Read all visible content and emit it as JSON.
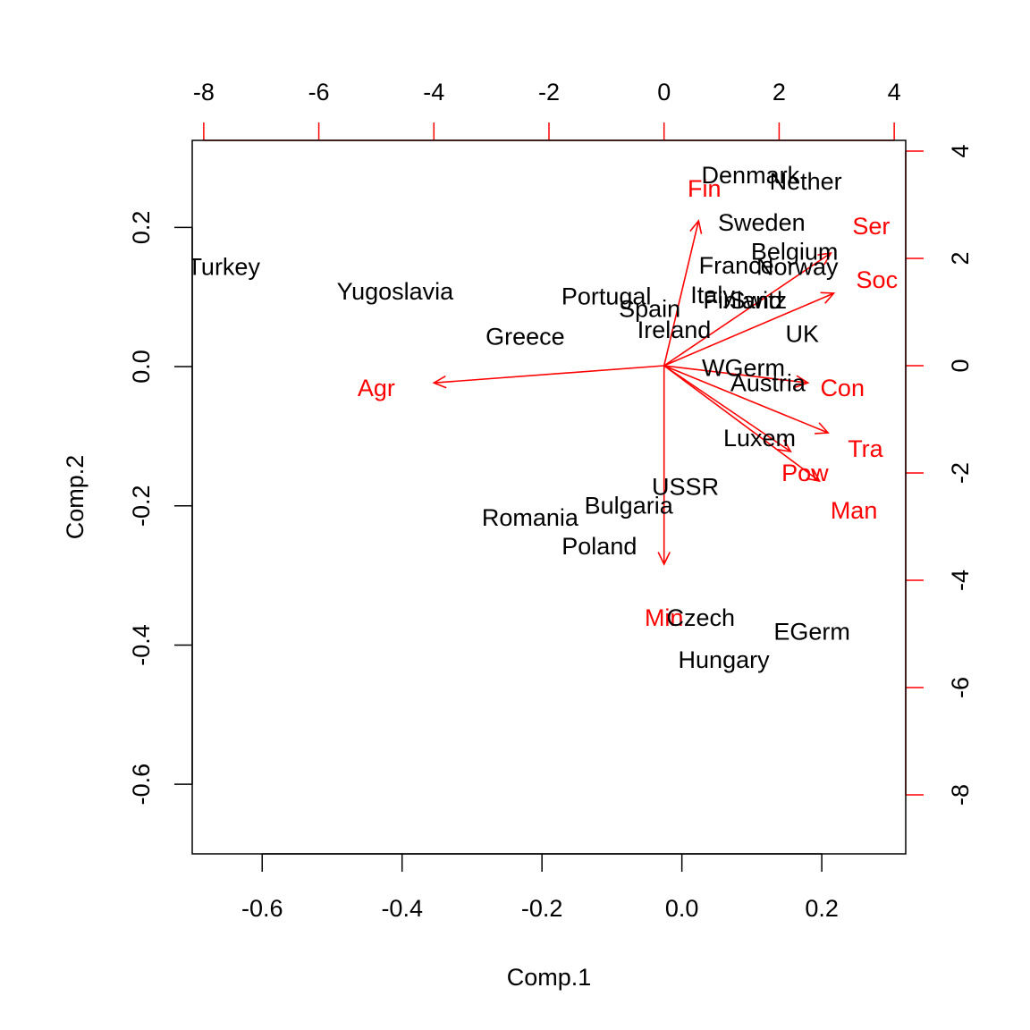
{
  "chart_data": {
    "type": "scatter",
    "title": "",
    "xlabel": "Comp.1",
    "ylabel": "Comp.2",
    "xlim": [
      -0.7,
      0.32
    ],
    "ylim": [
      -0.7,
      0.325
    ],
    "x_ticks": [
      -0.6,
      -0.4,
      -0.2,
      0.0,
      0.2
    ],
    "x_tick_labels": [
      "-0.6",
      "-0.4",
      "-0.2",
      "0.0",
      "0.2"
    ],
    "y_ticks": [
      -0.6,
      -0.4,
      -0.2,
      0.0,
      0.2
    ],
    "y_tick_labels": [
      "-0.6",
      "-0.4",
      "-0.2",
      "0.0",
      "0.2"
    ],
    "top_axis": {
      "lim": [
        -8.2,
        4.2
      ],
      "ticks": [
        -8,
        -6,
        -4,
        -2,
        0,
        2,
        4
      ],
      "tick_labels": [
        "-8",
        "-6",
        "-4",
        "-2",
        "0",
        "2",
        "4"
      ]
    },
    "right_axis": {
      "lim": [
        -9.1,
        4.2
      ],
      "ticks": [
        -8,
        -6,
        -4,
        -2,
        0,
        2,
        4
      ],
      "tick_labels": [
        "-8",
        "-6",
        "-4",
        "-2",
        "0",
        "2",
        "4"
      ]
    },
    "grid": false,
    "colors": {
      "points": "#000000",
      "loadings": "#ff0000",
      "frame": "#000000"
    },
    "observations": [
      {
        "label": "Turkey",
        "x": -0.655,
        "y": 0.143
      },
      {
        "label": "Yugoslavia",
        "x": -0.41,
        "y": 0.108
      },
      {
        "label": "Portugal",
        "x": -0.108,
        "y": 0.101
      },
      {
        "label": "Spain",
        "x": -0.046,
        "y": 0.083
      },
      {
        "label": "Greece",
        "x": -0.224,
        "y": 0.043
      },
      {
        "label": "Ireland",
        "x": -0.011,
        "y": 0.053
      },
      {
        "label": "Denmark",
        "x": 0.098,
        "y": 0.275
      },
      {
        "label": "Nether",
        "x": 0.177,
        "y": 0.266
      },
      {
        "label": "Sweden",
        "x": 0.114,
        "y": 0.207
      },
      {
        "label": "Belgium",
        "x": 0.161,
        "y": 0.165
      },
      {
        "label": "France",
        "x": 0.078,
        "y": 0.145
      },
      {
        "label": "Norway",
        "x": 0.165,
        "y": 0.143
      },
      {
        "label": "Italy",
        "x": 0.044,
        "y": 0.103
      },
      {
        "label": "Finland",
        "x": 0.087,
        "y": 0.095
      },
      {
        "label": "Switz",
        "x": 0.109,
        "y": 0.095
      },
      {
        "label": "UK",
        "x": 0.172,
        "y": 0.047
      },
      {
        "label": "WGerm",
        "x": 0.088,
        "y": -0.002
      },
      {
        "label": "Austria",
        "x": 0.123,
        "y": -0.024
      },
      {
        "label": "Luxem",
        "x": 0.111,
        "y": -0.103
      },
      {
        "label": "USSR",
        "x": 0.005,
        "y": -0.173
      },
      {
        "label": "Bulgaria",
        "x": -0.076,
        "y": -0.2
      },
      {
        "label": "Romania",
        "x": -0.217,
        "y": -0.217
      },
      {
        "label": "Poland",
        "x": -0.118,
        "y": -0.258
      },
      {
        "label": "Czech",
        "x": 0.027,
        "y": -0.361
      },
      {
        "label": "EGerm",
        "x": 0.186,
        "y": -0.381
      },
      {
        "label": "Hungary",
        "x": 0.06,
        "y": -0.421
      }
    ],
    "loadings": [
      {
        "label": "Agr",
        "x": -4.0,
        "y": -0.32,
        "label_x": -5.0,
        "label_y": -0.42
      },
      {
        "label": "Min",
        "x": 0.0,
        "y": -3.7,
        "label_x": 0.0,
        "label_y": -4.7
      },
      {
        "label": "Man",
        "x": 2.7,
        "y": -2.15,
        "label_x": 3.3,
        "label_y": -2.7
      },
      {
        "label": "Pow",
        "x": 2.2,
        "y": -1.6,
        "label_x": 2.45,
        "label_y": -2.0
      },
      {
        "label": "Con",
        "x": 2.5,
        "y": -0.32,
        "label_x": 3.1,
        "label_y": -0.42
      },
      {
        "label": "Ser",
        "x": 2.9,
        "y": 2.1,
        "label_x": 3.6,
        "label_y": 2.6
      },
      {
        "label": "Fin",
        "x": 0.6,
        "y": 2.7,
        "label_x": 0.7,
        "label_y": 3.3
      },
      {
        "label": "Soc",
        "x": 2.95,
        "y": 1.35,
        "label_x": 3.7,
        "label_y": 1.6
      },
      {
        "label": "Tra",
        "x": 2.85,
        "y": -1.25,
        "label_x": 3.5,
        "label_y": -1.55
      }
    ]
  }
}
